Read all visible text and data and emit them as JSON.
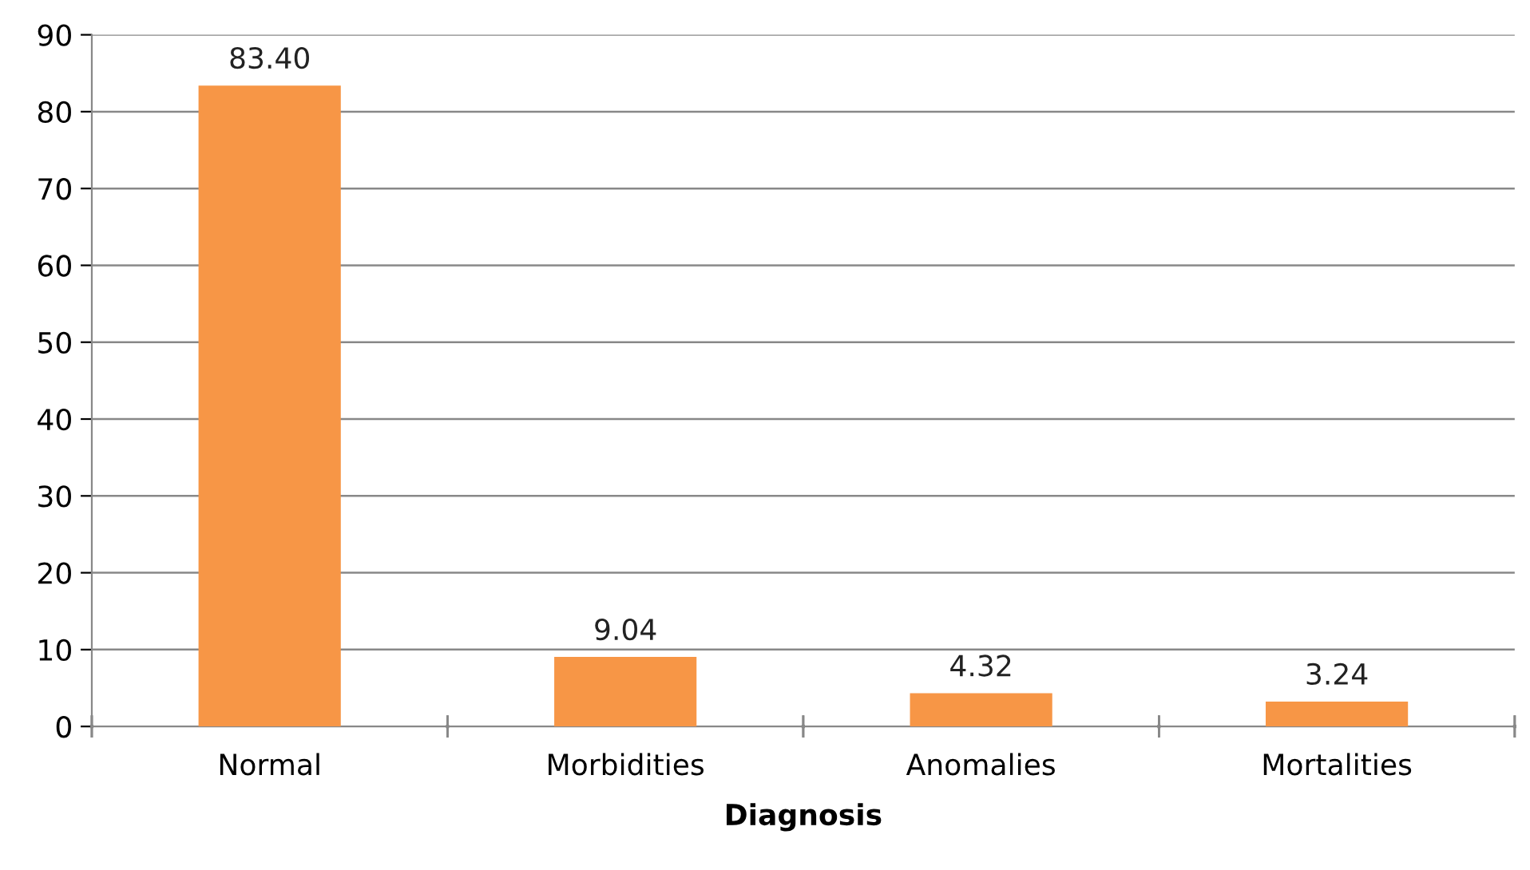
{
  "chart_data": {
    "type": "bar",
    "xlabel": "Diagnosis",
    "categories": [
      "Normal",
      "Morbidities",
      "Anomalies",
      "Mortalities"
    ],
    "values": [
      83.4,
      9.04,
      4.32,
      3.24
    ],
    "value_labels": [
      "83.40",
      "9.04",
      "4.32",
      "3.24"
    ],
    "color": "#f79646",
    "ylim": [
      0,
      90
    ],
    "yticks": [
      0,
      10,
      20,
      30,
      40,
      50,
      60,
      70,
      80,
      90
    ],
    "grid": "y"
  }
}
